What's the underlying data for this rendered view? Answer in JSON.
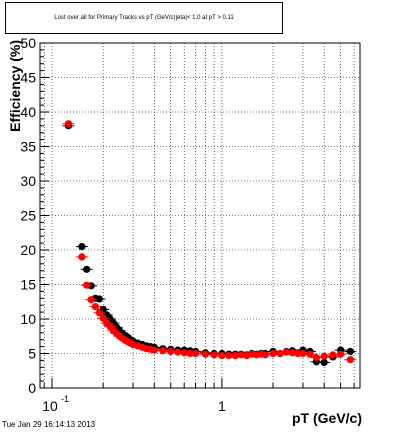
{
  "window": {
    "title": "Lost over all for Primary Tracks vs pT (GeV/c)|eta|< 1.0 at pT > 0.11",
    "footer": "Tue Jan 29 16:14:13 2013"
  },
  "colors": {
    "series_black": "#000000",
    "series_red": "#ff0000",
    "frame": "#000000",
    "grid": "#000000"
  },
  "chart_data": {
    "type": "scatter",
    "title": "Lost over all for Primary Tracks vs pT (GeV/c)|eta|< 1.0 at pT > 0.11",
    "xlabel": "pT (GeV/c)",
    "ylabel": "Efficiency (%)",
    "xscale": "log",
    "xlim": [
      0.085,
      6.5
    ],
    "ylim": [
      0,
      50
    ],
    "grid": true,
    "x_major_ticks": [
      0.1,
      1
    ],
    "x_tick_labels": [
      "10",
      "1"
    ],
    "x_tick_exponents": [
      "-1",
      ""
    ],
    "y_ticks": [
      0,
      5,
      10,
      15,
      20,
      25,
      30,
      35,
      40,
      45,
      50
    ],
    "y_tick_labels": [
      "0",
      "5",
      "10",
      "15",
      "20",
      "25",
      "30",
      "35",
      "40",
      "45",
      "50"
    ],
    "series": [
      {
        "color": "#000000",
        "x": [
          0.125,
          0.15,
          0.16,
          0.17,
          0.18,
          0.19,
          0.2,
          0.21,
          0.22,
          0.23,
          0.24,
          0.25,
          0.26,
          0.27,
          0.28,
          0.29,
          0.3,
          0.32,
          0.34,
          0.36,
          0.38,
          0.4,
          0.45,
          0.5,
          0.55,
          0.6,
          0.65,
          0.7,
          0.8,
          0.9,
          1.0,
          1.1,
          1.2,
          1.3,
          1.4,
          1.5,
          1.6,
          1.7,
          1.8,
          2.0,
          2.2,
          2.4,
          2.6,
          2.8,
          3.0,
          3.3,
          3.6,
          4.0,
          4.5,
          5.0,
          5.7
        ],
        "y": [
          38.0,
          20.5,
          17.2,
          14.8,
          13.0,
          12.9,
          11.4,
          10.6,
          10.0,
          9.4,
          8.8,
          8.3,
          7.9,
          7.6,
          7.3,
          7.0,
          6.8,
          6.5,
          6.3,
          6.1,
          6.0,
          5.9,
          5.7,
          5.6,
          5.5,
          5.5,
          5.4,
          5.3,
          5.1,
          5.0,
          5.0,
          4.9,
          4.9,
          4.9,
          4.8,
          5.0,
          4.9,
          5.0,
          5.0,
          5.3,
          5.0,
          5.3,
          5.4,
          5.1,
          5.5,
          5.3,
          3.8,
          3.7,
          4.5,
          5.5,
          5.3
        ]
      },
      {
        "color": "#ff0000",
        "x": [
          0.125,
          0.15,
          0.16,
          0.17,
          0.18,
          0.19,
          0.2,
          0.21,
          0.22,
          0.23,
          0.24,
          0.25,
          0.26,
          0.27,
          0.28,
          0.29,
          0.3,
          0.32,
          0.34,
          0.36,
          0.38,
          0.4,
          0.45,
          0.5,
          0.55,
          0.6,
          0.65,
          0.7,
          0.8,
          0.9,
          1.0,
          1.1,
          1.2,
          1.3,
          1.4,
          1.5,
          1.6,
          1.7,
          1.8,
          2.0,
          2.2,
          2.4,
          2.6,
          2.8,
          3.0,
          3.3,
          3.6,
          4.0,
          4.5,
          5.0,
          5.7
        ],
        "y": [
          38.3,
          19.0,
          14.9,
          12.8,
          11.8,
          10.9,
          10.1,
          9.4,
          8.9,
          8.3,
          7.9,
          7.5,
          7.2,
          6.9,
          6.7,
          6.5,
          6.3,
          6.1,
          5.9,
          5.7,
          5.6,
          5.5,
          5.4,
          5.3,
          5.2,
          5.1,
          5.0,
          5.0,
          4.9,
          4.8,
          4.7,
          4.7,
          4.7,
          4.8,
          4.7,
          4.9,
          4.8,
          4.9,
          4.8,
          5.0,
          5.0,
          5.2,
          5.1,
          5.0,
          5.0,
          4.9,
          4.4,
          4.6,
          4.8,
          4.9,
          4.1
        ]
      }
    ]
  }
}
